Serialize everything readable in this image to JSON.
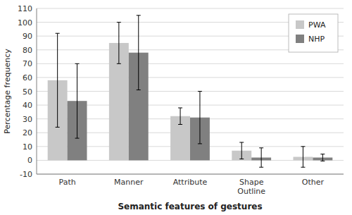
{
  "chart_data": {
    "type": "bar",
    "xlabel": "Semantic features of gestures",
    "ylabel": "Percentage frequency",
    "categories": [
      "Path",
      "Manner",
      "Attribute",
      "Shape\nOutline",
      "Other"
    ],
    "series": [
      {
        "name": "PWA",
        "color": "#c8c8c8",
        "values": [
          58,
          85,
          32,
          7,
          2.5
        ],
        "errors": [
          34,
          15,
          6,
          6,
          7.5
        ]
      },
      {
        "name": "NHP",
        "color": "#808080",
        "values": [
          43,
          78,
          31,
          2,
          2
        ],
        "errors": [
          27,
          27,
          19,
          7,
          2.5
        ]
      }
    ],
    "ylim": [
      -10,
      110
    ],
    "yticks": [
      -10,
      0,
      10,
      20,
      30,
      40,
      50,
      60,
      70,
      80,
      90,
      100,
      110
    ],
    "grid": true,
    "legend": "upper right"
  }
}
